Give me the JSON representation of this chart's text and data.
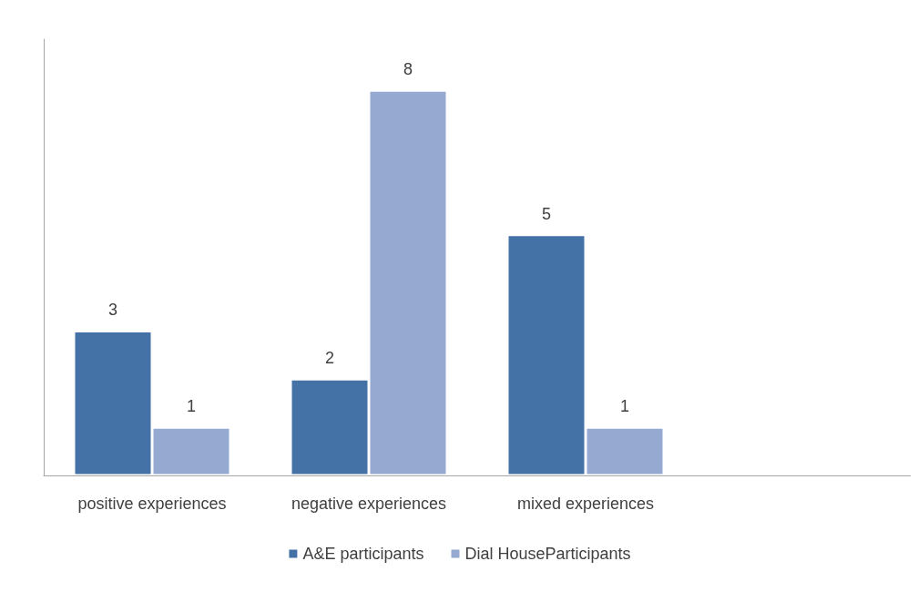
{
  "chart_data": {
    "type": "bar",
    "categories": [
      "positive experiences",
      "negative experiences",
      "mixed experiences",
      null
    ],
    "series": [
      {
        "name": "A&E participants",
        "color": "#4472a6",
        "values": [
          3,
          2,
          5,
          null
        ]
      },
      {
        "name": "Dial HouseParticipants",
        "color": "#95a9d1",
        "values": [
          1,
          8,
          1,
          null
        ]
      }
    ],
    "data_labels": true,
    "grid": false,
    "legend": "bottom"
  }
}
